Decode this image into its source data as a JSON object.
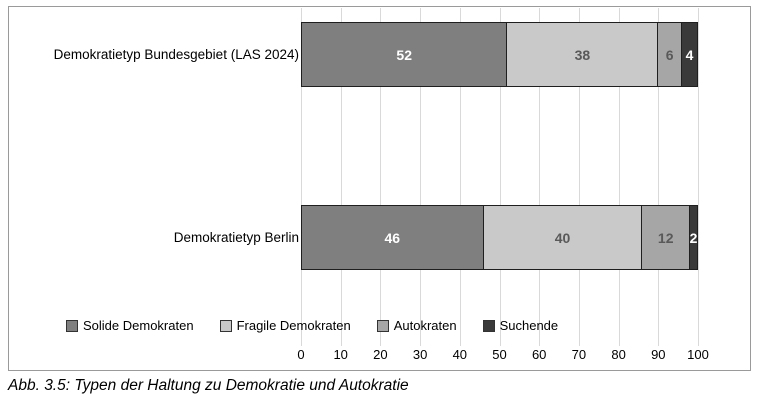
{
  "caption": "Abb. 3.5: Typen der Haltung zu Demokratie und Autokratie",
  "chart_data": {
    "type": "bar",
    "orientation": "horizontal-stacked",
    "title": "",
    "xlabel": "",
    "ylabel": "",
    "xlim": [
      0,
      100
    ],
    "x_ticks": [
      0,
      10,
      20,
      30,
      40,
      50,
      60,
      70,
      80,
      90,
      100
    ],
    "grid": true,
    "legend_position": "bottom-left",
    "categories": [
      "Demokratietyp Bundesgebiet (LAS 2024)",
      "Demokratietyp Berlin"
    ],
    "series": [
      {
        "name": "Solide Demokraten",
        "values": [
          52,
          46
        ],
        "color": "#7f7f7f",
        "label_color": "#ffffff"
      },
      {
        "name": "Fragile Demokraten",
        "values": [
          38,
          40
        ],
        "color": "#c9c9c9",
        "label_color": "#595959"
      },
      {
        "name": "Autokraten",
        "values": [
          6,
          12
        ],
        "color": "#a6a6a6",
        "label_color": "#595959"
      },
      {
        "name": "Suchende",
        "values": [
          4,
          2
        ],
        "color": "#3a3a3a",
        "label_color": "#ffffff"
      }
    ]
  }
}
